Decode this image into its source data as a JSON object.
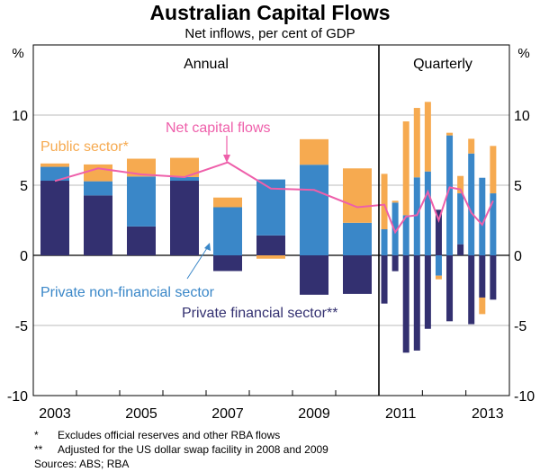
{
  "chart_data": {
    "type": "bar",
    "stacked": true,
    "title": "Australian Capital Flows",
    "subtitle": "Net inflows, per cent of GDP",
    "ylabel_left": "%",
    "ylabel_right": "%",
    "ylim": [
      -10,
      15
    ],
    "yticks": [
      -10,
      -5,
      0,
      5,
      10
    ],
    "ytick_labels": [
      "-10",
      "-5",
      "0",
      "5",
      "10"
    ],
    "panels": {
      "annual": "Annual",
      "quarterly": "Quarterly"
    },
    "xtick_labels": [
      "2003",
      "2005",
      "2007",
      "2009",
      "2011",
      "2013"
    ],
    "annual_x": [
      2003,
      2004,
      2005,
      2006,
      2007,
      2008,
      2009,
      2010
    ],
    "quarterly_x": [
      2011.0,
      2011.25,
      2011.5,
      2011.75,
      2012.0,
      2012.25,
      2012.5,
      2012.75,
      2013.0,
      2013.25,
      2013.5
    ],
    "series": [
      {
        "name": "Private financial sector**",
        "key": "financial",
        "color": "#333070",
        "annual": [
          5.32,
          4.27,
          2.06,
          5.32,
          -1.12,
          1.42,
          -2.81,
          -2.75
        ],
        "quarterly": [
          -3.44,
          -1.13,
          -6.94,
          -6.79,
          -5.24,
          3.25,
          -4.7,
          0.79,
          -4.91,
          -3.01,
          -3.16
        ]
      },
      {
        "name": "Private non-financial sector",
        "key": "nonfinancial",
        "color": "#3a87c8",
        "annual": [
          0.99,
          1.01,
          3.56,
          0.26,
          3.43,
          3.99,
          6.46,
          2.32
        ],
        "quarterly": [
          1.86,
          3.76,
          2.86,
          5.56,
          5.98,
          -1.45,
          8.55,
          3.63,
          7.26,
          5.53,
          4.42
        ]
      },
      {
        "name": "Public sector*",
        "key": "public",
        "color": "#f6aa50",
        "annual": [
          0.24,
          1.2,
          1.27,
          1.37,
          0.69,
          -0.24,
          1.82,
          3.88
        ],
        "quarterly": [
          3.95,
          0.13,
          6.69,
          4.95,
          4.96,
          -0.26,
          0.19,
          1.24,
          1.05,
          -1.18,
          3.38
        ]
      }
    ],
    "line": {
      "name": "Net capital flows",
      "color": "#ee5faa",
      "annual": [
        5.3,
        6.2,
        5.77,
        5.58,
        6.63,
        4.76,
        4.66,
        3.43
      ],
      "quarterly": [
        3.61,
        1.65,
        2.76,
        2.86,
        4.53,
        2.5,
        4.85,
        4.7,
        3.03,
        2.18,
        3.89
      ]
    },
    "grid": true,
    "footnotes": [
      {
        "mark": "*",
        "text": "Excludes official reserves and other RBA flows"
      },
      {
        "mark": "**",
        "text": "Adjusted for the US dollar swap facility in 2008 and 2009"
      }
    ],
    "sources": "Sources: ABS; RBA"
  }
}
